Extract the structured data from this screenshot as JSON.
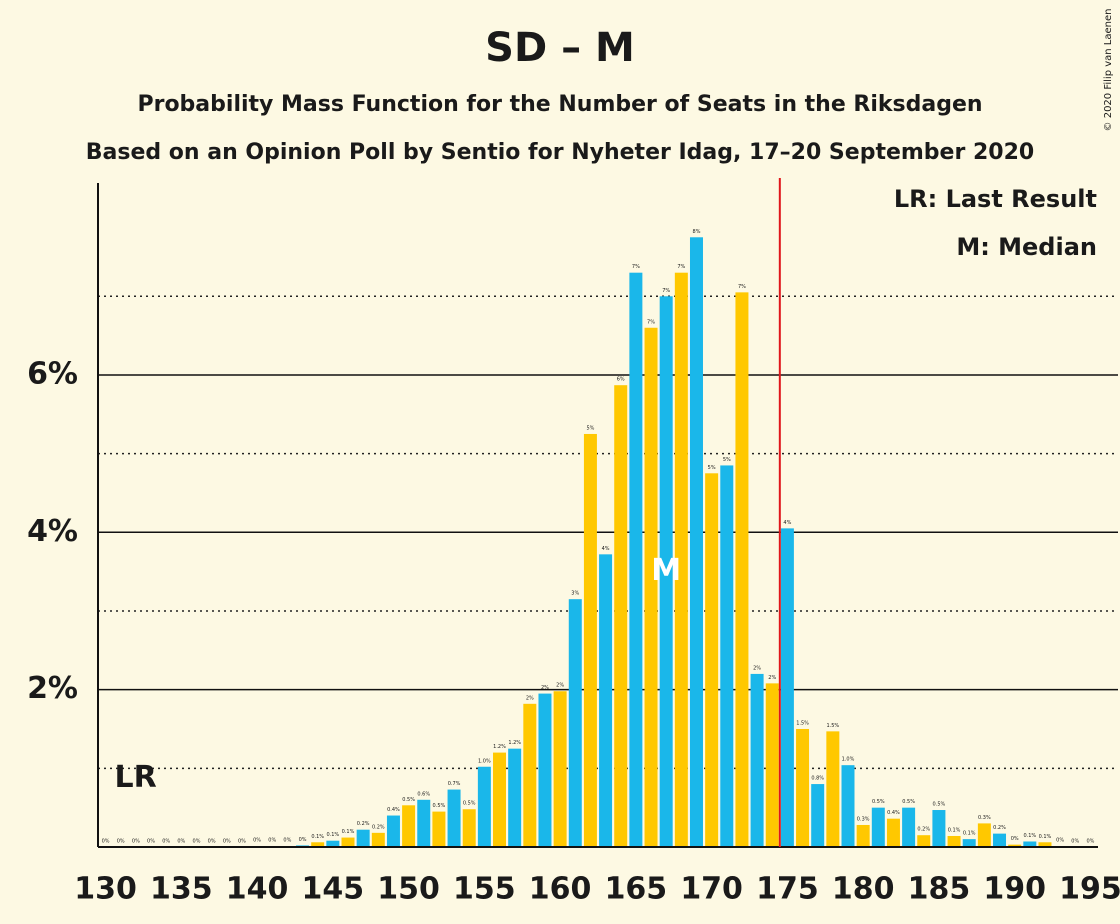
{
  "chart_data": {
    "type": "bar",
    "title": "SD – M",
    "subtitle": "Probability Mass Function for the Number of Seats in the Riksdagen",
    "subtitle2": "Based on an Opinion Poll by Sentio for Nyheter Idag, 17–20 September 2020",
    "copyright": "© 2020 Filip van Laenen",
    "legend_lr": "LR: Last Result",
    "legend_median": "M: Median",
    "lr_label": "LR",
    "median_label": "M",
    "last_result": 175,
    "median": 167,
    "colors": [
      "#ffc800",
      "#1ab7ea"
    ],
    "last_result_color": "#e0161b",
    "x": [
      130,
      131,
      132,
      133,
      134,
      135,
      136,
      137,
      138,
      139,
      140,
      141,
      142,
      143,
      144,
      145,
      146,
      147,
      148,
      149,
      150,
      151,
      152,
      153,
      154,
      155,
      156,
      157,
      158,
      159,
      160,
      161,
      162,
      163,
      164,
      165,
      166,
      167,
      168,
      169,
      170,
      171,
      172,
      173,
      174,
      175,
      176,
      177,
      178,
      179,
      180,
      181,
      182,
      183,
      184,
      185,
      186,
      187,
      188,
      189,
      190,
      191,
      192,
      193,
      194,
      195
    ],
    "values": [
      0,
      0,
      0,
      0,
      0,
      0,
      0,
      0,
      0,
      0,
      0.01,
      0.01,
      0.01,
      0.02,
      0.06,
      0.08,
      0.12,
      0.22,
      0.18,
      0.4,
      0.53,
      0.6,
      0.45,
      0.73,
      0.48,
      1.02,
      1.2,
      1.25,
      1.82,
      1.95,
      1.98,
      3.15,
      5.25,
      3.72,
      5.87,
      7.3,
      6.6,
      7.0,
      7.3,
      7.75,
      4.75,
      4.85,
      7.05,
      2.2,
      2.08,
      4.05,
      1.5,
      0.8,
      1.47,
      1.04,
      0.28,
      0.5,
      0.36,
      0.5,
      0.15,
      0.47,
      0.14,
      0.1,
      0.3,
      0.17,
      0.03,
      0.07,
      0.06,
      0.01,
      0,
      0
    ],
    "value_labels": [
      "0%",
      "0%",
      "0%",
      "0%",
      "0%",
      "0%",
      "0%",
      "0%",
      "0%",
      "0%",
      "0%",
      "0%",
      "0%",
      "0%",
      "0.1%",
      "0.1%",
      "0.1%",
      "0.2%",
      "0.2%",
      "0.4%",
      "0.5%",
      "0.6%",
      "0.5%",
      "0.7%",
      "0.5%",
      "1.0%",
      "1.2%",
      "1.2%",
      "2%",
      "2%",
      "2%",
      "3%",
      "5%",
      "4%",
      "6%",
      "7%",
      "7%",
      "7%",
      "7%",
      "8%",
      "5%",
      "5%",
      "7%",
      "2%",
      "2%",
      "4%",
      "1.5%",
      "0.8%",
      "1.5%",
      "1.0%",
      "0.3%",
      "0.5%",
      "0.4%",
      "0.5%",
      "0.2%",
      "0.5%",
      "0.1%",
      "0.1%",
      "0.3%",
      "0.2%",
      "0%",
      "0.1%",
      "0.1%",
      "0%",
      "0%",
      "0%"
    ],
    "xlim": [
      129.5,
      195.5
    ],
    "xticks": [
      130,
      135,
      140,
      145,
      150,
      155,
      160,
      165,
      170,
      175,
      180,
      185,
      190,
      195
    ],
    "ylim": [
      0,
      8.44
    ],
    "yticks": [
      {
        "value": 2,
        "label": "2%"
      },
      {
        "value": 4,
        "label": "4%"
      },
      {
        "value": 6,
        "label": "6%"
      }
    ],
    "minor_gridlines": [
      1,
      3,
      5,
      7
    ]
  }
}
